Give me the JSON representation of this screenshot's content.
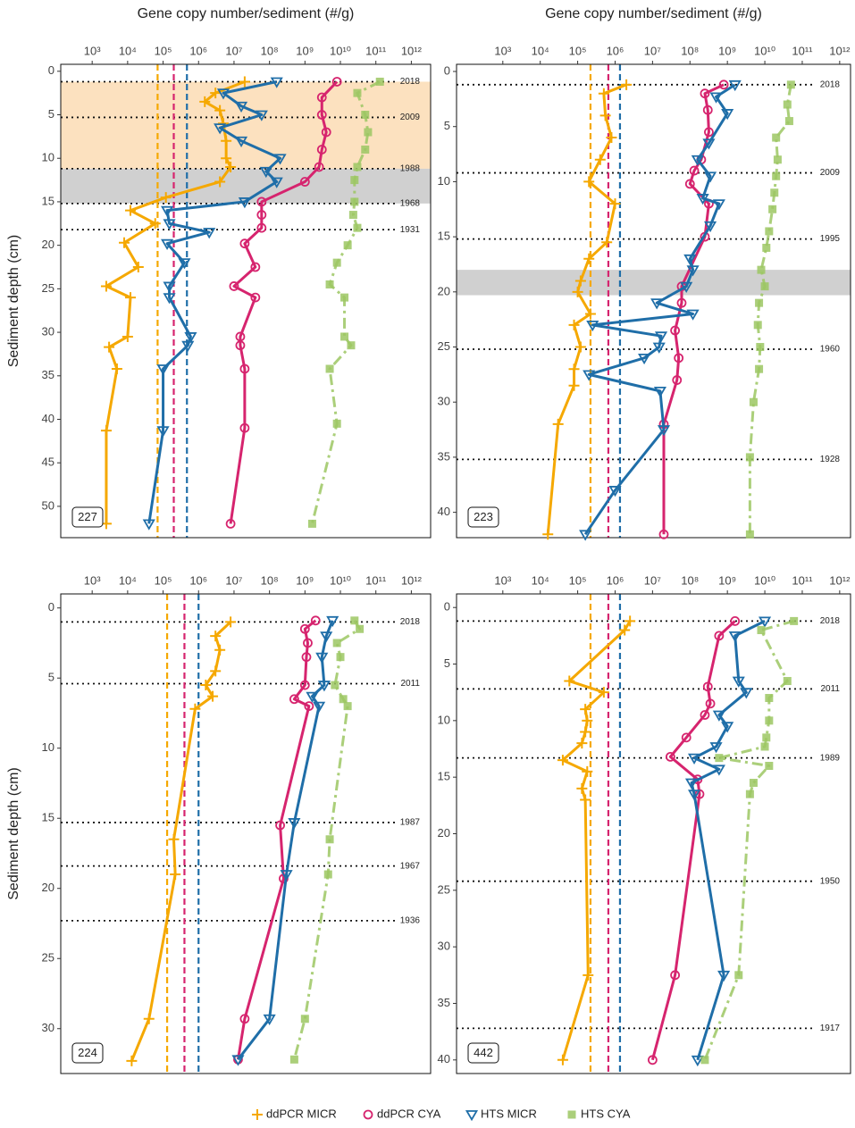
{
  "x_label": "Gene copy number/sediment (#/g)",
  "y_label": "Sediment depth (cm)",
  "legend": [
    {
      "name": "ddPCR MICR",
      "color": "#f5a800",
      "marker": "plus"
    },
    {
      "name": "ddPCR CYA",
      "color": "#d6246e",
      "marker": "circle"
    },
    {
      "name": "HTS MICR",
      "color": "#1f6ea8",
      "marker": "triangle"
    },
    {
      "name": "HTS CYA",
      "color": "#9cc763",
      "marker": "square"
    }
  ],
  "chart_data": [
    {
      "type": "line",
      "label": "227",
      "log_x": true,
      "reverse_y": true,
      "xlim": [
        130,
        3500000000000.0
      ],
      "xticks": [
        {
          "value": 1000.0,
          "label": "10³"
        },
        {
          "value": 10000.0,
          "label": "10⁴"
        },
        {
          "value": 100000.0,
          "label": "10⁵"
        },
        {
          "value": 1000000.0,
          "label": "10⁶"
        },
        {
          "value": 10000000.0,
          "label": "10⁷"
        },
        {
          "value": 100000000.0,
          "label": "10⁸"
        },
        {
          "value": 1000000000.0,
          "label": "10⁹"
        },
        {
          "value": 10000000000.0,
          "label": "10¹⁰"
        },
        {
          "value": 100000000000.0,
          "label": "10¹¹"
        },
        {
          "value": 1000000000000.0,
          "label": "10¹²"
        }
      ],
      "ylim": [
        -0.8,
        53.6
      ],
      "yticks": [
        0,
        5,
        10,
        15,
        20,
        25,
        30,
        35,
        40,
        45,
        50
      ],
      "bands": [
        {
          "from": 1.2,
          "to": 11.2,
          "color": "#fbdcb4"
        },
        {
          "from": 11.2,
          "to": 15.2,
          "color": "#c8c8c8"
        }
      ],
      "dates": [
        {
          "depth": 1.2,
          "year": 2018
        },
        {
          "depth": 5.3,
          "year": 2009
        },
        {
          "depth": 11.2,
          "year": 1988
        },
        {
          "depth": 15.2,
          "year": 1968
        },
        {
          "depth": 18.2,
          "year": 1931
        }
      ],
      "detection_limits": [
        70000.0,
        200000.0,
        470000.0
      ],
      "series": [
        {
          "x": [
            20000000.0,
            3000000.0,
            1500000.0,
            4000000.0,
            5000000.0,
            6000000.0,
            6000000.0,
            8000000.0,
            4000000.0,
            120000.0,
            12000.0,
            60000.0,
            8000.0,
            20000.0,
            2500.0,
            12000.0,
            10000.0,
            3000.0,
            5000.0,
            2500.0,
            2500.0
          ],
          "y": [
            1.2,
            2.5,
            3.5,
            4.5,
            6,
            8,
            10,
            11,
            12.7,
            14.5,
            16,
            17.5,
            19.7,
            22.5,
            24.7,
            26,
            30.5,
            31.7,
            34.2,
            41.3,
            52
          ]
        },
        {
          "x": [
            8000000000.0,
            3000000000.0,
            3000000000.0,
            4000000000.0,
            3000000000.0,
            2500000000.0,
            1000000000.0,
            60000000.0,
            60000000.0,
            60000000.0,
            20000000.0,
            40000000.0,
            10000000.0,
            40000000.0,
            15000000.0,
            15000000.0,
            20000000.0,
            20000000.0,
            8000000.0
          ],
          "y": [
            1.2,
            3,
            5,
            7,
            9,
            11,
            12.7,
            15,
            16.5,
            18,
            19.8,
            22.5,
            24.7,
            26,
            30.5,
            31.5,
            34.2,
            41,
            52
          ]
        },
        {
          "x": [
            160000000.0,
            5000000.0,
            16000000.0,
            60000000.0,
            4000000.0,
            16000000.0,
            200000000.0,
            80000000.0,
            160000000.0,
            20000000.0,
            130000.0,
            150000.0,
            2000000.0,
            130000.0,
            400000.0,
            150000.0,
            150000.0,
            600000.0,
            500000.0,
            100000.0,
            100000.0,
            40000.0
          ],
          "y": [
            1.2,
            2.5,
            4,
            5,
            6.5,
            8,
            10,
            11.5,
            12.7,
            15,
            16,
            17.5,
            18.5,
            19.8,
            22,
            24.7,
            26,
            30.5,
            31.5,
            34.2,
            41.3,
            52
          ]
        },
        {
          "x": [
            130000000000.0,
            30000000000.0,
            50000000000.0,
            60000000000.0,
            50000000000.0,
            30000000000.0,
            25000000000.0,
            25000000000.0,
            23000000000.0,
            30000000000.0,
            16000000000.0,
            8000000000.0,
            5000000000.0,
            13000000000.0,
            13000000000.0,
            20000000000.0,
            5000000000.0,
            8000000000.0,
            1600000000.0
          ],
          "y": [
            1.2,
            2.5,
            5,
            7,
            9,
            11,
            12.5,
            15,
            16.5,
            18,
            20,
            22,
            24.5,
            26,
            30.5,
            31.5,
            34.2,
            40.5,
            52
          ]
        }
      ]
    },
    {
      "type": "line",
      "label": "223",
      "log_x": true,
      "reverse_y": true,
      "xlim": [
        58,
        1950000000000.0
      ],
      "xticks": [
        {
          "value": 1000.0,
          "label": "10³"
        },
        {
          "value": 10000.0,
          "label": "10⁴"
        },
        {
          "value": 100000.0,
          "label": "10⁵"
        },
        {
          "value": 1000000.0,
          "label": "10⁶"
        },
        {
          "value": 10000000.0,
          "label": "10⁷"
        },
        {
          "value": 100000000.0,
          "label": "10⁸"
        },
        {
          "value": 1000000000.0,
          "label": "10⁹"
        },
        {
          "value": 10000000000.0,
          "label": "10¹⁰"
        },
        {
          "value": 100000000000.0,
          "label": "10¹¹"
        },
        {
          "value": 1000000000000.0,
          "label": "10¹²"
        }
      ],
      "ylim": [
        -0.65,
        42.3
      ],
      "yticks": [
        0,
        5,
        10,
        15,
        20,
        25,
        30,
        35,
        40
      ],
      "bands": [
        {
          "from": 18,
          "to": 20.3,
          "color": "#c8c8c8"
        }
      ],
      "dates": [
        {
          "depth": 1.2,
          "year": 2018
        },
        {
          "depth": 9.2,
          "year": 2009
        },
        {
          "depth": 15.2,
          "year": 1995
        },
        {
          "depth": 25.2,
          "year": 1960
        },
        {
          "depth": 35.2,
          "year": 1928
        }
      ],
      "detection_limits": [
        220000.0,
        660000.0,
        1350000.0
      ],
      "series": [
        {
          "x": [
            2000000.0,
            500000.0,
            550000.0,
            800000.0,
            400000.0,
            200000.0,
            1000000.0,
            600000.0,
            200000.0,
            120000.0,
            100000.0,
            220000.0,
            80000.0,
            120000.0,
            80000.0,
            80000.0,
            30000.0,
            16000.0
          ],
          "y": [
            1.2,
            2,
            4,
            6,
            8,
            10,
            12,
            15.5,
            17,
            19,
            20,
            22,
            23,
            25,
            27,
            28.5,
            32,
            42
          ]
        },
        {
          "x": [
            800000000.0,
            250000000.0,
            300000000.0,
            320000000.0,
            200000000.0,
            130000000.0,
            100000000.0,
            320000000.0,
            250000000.0,
            60000000.0,
            60000000.0,
            40000000.0,
            50000000.0,
            45000000.0,
            20000000.0,
            20000000.0
          ],
          "y": [
            1.2,
            2,
            3.5,
            5.5,
            8,
            9,
            10.2,
            12,
            15,
            19.5,
            21,
            23.5,
            26,
            28,
            32,
            42
          ]
        },
        {
          "x": [
            1600000000.0,
            500000000.0,
            1000000000.0,
            320000000.0,
            160000000.0,
            350000000.0,
            220000000.0,
            600000000.0,
            350000000.0,
            100000000.0,
            120000000.0,
            80000000.0,
            13000000.0,
            120000000.0,
            250000.0,
            17000000.0,
            15000000.0,
            6000000.0,
            200000.0,
            16000000.0,
            20000000.0,
            1000000.0,
            160000.0
          ],
          "y": [
            1.2,
            2.3,
            3.8,
            6.5,
            8,
            9.5,
            11.5,
            12,
            14,
            17,
            18,
            19.5,
            21,
            22,
            23,
            24,
            25,
            26,
            27.5,
            29,
            32.5,
            38,
            42
          ]
        },
        {
          "x": [
            50000000000.0,
            40000000000.0,
            45000000000.0,
            20000000000.0,
            22000000000.0,
            20000000000.0,
            18000000000.0,
            16000000000.0,
            13000000000.0,
            11000000000.0,
            8000000000.0,
            10000000000.0,
            7000000000.0,
            6500000000.0,
            7500000000.0,
            7000000000.0,
            5000000000.0,
            4000000000.0,
            4000000000.0
          ],
          "y": [
            1.2,
            3,
            4.5,
            6,
            8,
            9.5,
            11,
            12.5,
            14.5,
            16,
            18,
            19.5,
            21,
            23,
            25,
            27,
            30,
            35,
            42
          ]
        }
      ]
    },
    {
      "type": "line",
      "label": "224",
      "log_x": true,
      "reverse_y": true,
      "xlim": [
        130,
        3500000000000.0
      ],
      "xticks": [
        {
          "value": 1000.0,
          "label": "10³"
        },
        {
          "value": 10000.0,
          "label": "10⁴"
        },
        {
          "value": 100000.0,
          "label": "10⁵"
        },
        {
          "value": 1000000.0,
          "label": "10⁶"
        },
        {
          "value": 10000000.0,
          "label": "10⁷"
        },
        {
          "value": 100000000.0,
          "label": "10⁸"
        },
        {
          "value": 1000000000.0,
          "label": "10⁹"
        },
        {
          "value": 10000000000.0,
          "label": "10¹⁰"
        },
        {
          "value": 100000000000.0,
          "label": "10¹¹"
        },
        {
          "value": 1000000000000.0,
          "label": "10¹²"
        }
      ],
      "ylim": [
        -1,
        33.2
      ],
      "yticks": [
        0,
        5,
        10,
        15,
        20,
        25,
        30
      ],
      "bands": [],
      "dates": [
        {
          "depth": 1,
          "year": 2018
        },
        {
          "depth": 5.4,
          "year": 2011
        },
        {
          "depth": 15.3,
          "year": 1987
        },
        {
          "depth": 18.4,
          "year": 1967
        },
        {
          "depth": 22.3,
          "year": 1936
        }
      ],
      "detection_limits": [
        130000.0,
        400000.0,
        1000000.0
      ],
      "series": [
        {
          "x": [
            8000000.0,
            3000000.0,
            4000000.0,
            3000000.0,
            1600000.0,
            2500000.0,
            800000.0,
            200000.0,
            220000.0,
            40000.0,
            13000.0
          ],
          "y": [
            1,
            2,
            3,
            4.5,
            5.5,
            6.3,
            7.2,
            16.5,
            19,
            29.3,
            32.3
          ]
        },
        {
          "x": [
            2000000000.0,
            1000000000.0,
            1200000000.0,
            1100000000.0,
            1000000000.0,
            500000000.0,
            1300000000.0,
            200000000.0,
            250000000.0,
            20000000.0,
            13000000.0
          ],
          "y": [
            0.9,
            1.5,
            2.5,
            3.5,
            5.5,
            6.5,
            7,
            15.5,
            19.3,
            29.3,
            32.2
          ]
        },
        {
          "x": [
            6000000000.0,
            4000000000.0,
            3000000000.0,
            3500000000.0,
            1600000000.0,
            2500000000.0,
            500000000.0,
            300000000.0,
            100000000.0,
            13000000.0
          ],
          "y": [
            0.9,
            2,
            3.5,
            5.5,
            6.3,
            7,
            15.3,
            19,
            29.3,
            32.2
          ]
        },
        {
          "x": [
            25000000000.0,
            35000000000.0,
            8000000000.0,
            10000000000.0,
            7000000000.0,
            12000000000.0,
            16000000000.0,
            5000000000.0,
            4500000000.0,
            1000000000.0,
            500000000.0
          ],
          "y": [
            0.9,
            1.5,
            2.5,
            3.5,
            5.5,
            6.5,
            7,
            16.5,
            19,
            29.3,
            32.2
          ]
        }
      ]
    },
    {
      "type": "line",
      "label": "442",
      "log_x": true,
      "reverse_y": true,
      "xlim": [
        58,
        1950000000000.0
      ],
      "xticks": [
        {
          "value": 1000.0,
          "label": "10³"
        },
        {
          "value": 10000.0,
          "label": "10⁴"
        },
        {
          "value": 100000.0,
          "label": "10⁵"
        },
        {
          "value": 1000000.0,
          "label": "10⁶"
        },
        {
          "value": 10000000.0,
          "label": "10⁷"
        },
        {
          "value": 100000000.0,
          "label": "10⁸"
        },
        {
          "value": 1000000000.0,
          "label": "10⁹"
        },
        {
          "value": 10000000000.0,
          "label": "10¹⁰"
        },
        {
          "value": 100000000000.0,
          "label": "10¹¹"
        },
        {
          "value": 1000000000000.0,
          "label": "10¹²"
        }
      ],
      "ylim": [
        -1.2,
        41.2
      ],
      "yticks": [
        0,
        5,
        10,
        15,
        20,
        25,
        30,
        35,
        40
      ],
      "bands": [],
      "dates": [
        {
          "depth": 1.2,
          "year": 2018
        },
        {
          "depth": 7.2,
          "year": 2011
        },
        {
          "depth": 13.3,
          "year": 1989
        },
        {
          "depth": 24.2,
          "year": 1950
        },
        {
          "depth": 37.2,
          "year": 1917
        }
      ],
      "detection_limits": [
        220000.0,
        660000.0,
        1350000.0
      ],
      "series": [
        {
          "x": [
            2500000.0,
            1800000.0,
            60000.0,
            500000.0,
            160000.0,
            180000.0,
            160000.0,
            130000.0,
            40000.0,
            180000.0,
            130000.0,
            160000.0,
            190000.0,
            40000.0
          ],
          "y": [
            1.2,
            2,
            6.5,
            7.5,
            9,
            10,
            11,
            12,
            13.5,
            14.5,
            16,
            17,
            32.5,
            40
          ]
        },
        {
          "x": [
            1600000000.0,
            600000000.0,
            300000000.0,
            350000000.0,
            250000000.0,
            80000000.0,
            30000000.0,
            160000000.0,
            180000000.0,
            40000000.0,
            10000000.0
          ],
          "y": [
            1.2,
            2.5,
            7,
            8.5,
            9.5,
            11.5,
            13.2,
            15.2,
            16.5,
            32.5,
            40
          ]
        },
        {
          "x": [
            10000000000.0,
            1600000000.0,
            2000000000.0,
            3200000000.0,
            600000000.0,
            1000000000.0,
            500000000.0,
            130000000.0,
            600000000.0,
            110000000.0,
            130000000.0,
            800000000.0,
            160000000.0
          ],
          "y": [
            1.2,
            2.5,
            6.5,
            7.5,
            9.5,
            10.5,
            12.3,
            13.3,
            14.3,
            15.5,
            16.5,
            32.5,
            40
          ]
        },
        {
          "x": [
            60000000000.0,
            8000000000.0,
            40000000000.0,
            13000000000.0,
            13000000000.0,
            11000000000.0,
            10000000000.0,
            600000000.0,
            13000000000.0,
            5000000000.0,
            4000000000.0,
            2000000000.0,
            250000000.0
          ],
          "y": [
            1.2,
            2,
            6.5,
            8,
            10,
            11.5,
            12.3,
            13.3,
            14,
            15.5,
            16.5,
            32.5,
            40
          ]
        }
      ]
    }
  ]
}
